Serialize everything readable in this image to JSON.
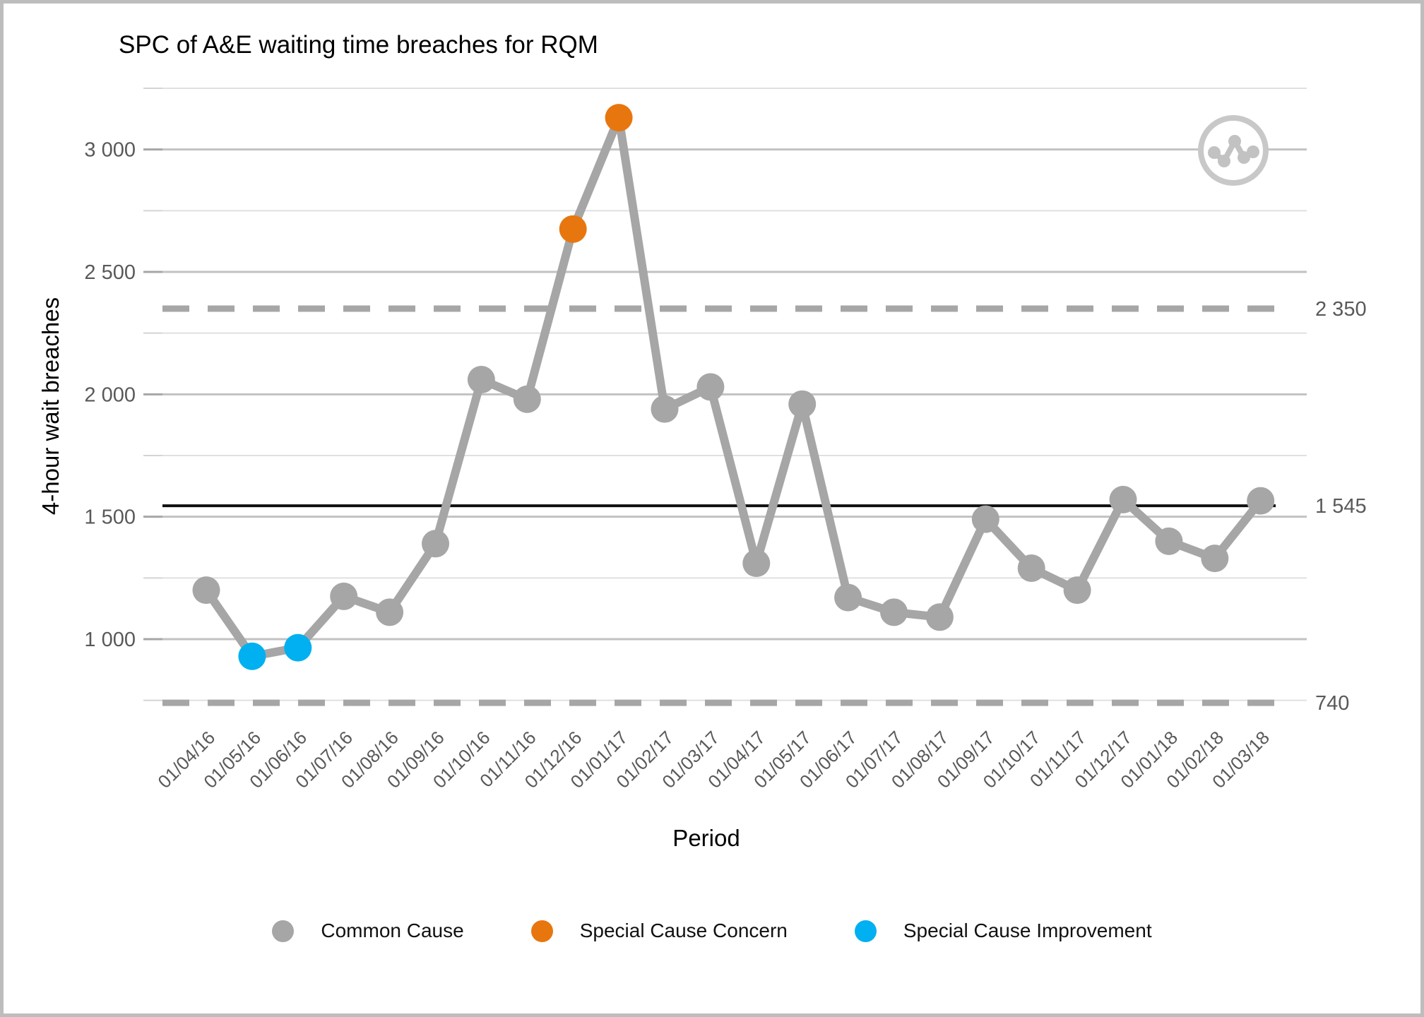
{
  "frame": {
    "border_color": "#bdbdbd",
    "background": "#ffffff"
  },
  "header": {
    "title": "SPC of A&E waiting time breaches for RQM"
  },
  "axes": {
    "y_title": "4-hour wait breaches",
    "x_title": "Period"
  },
  "icon": {
    "name": "spc-line-chart-icon",
    "ring_color": "#c8c8c8",
    "glyph_color": "#c2c2c2"
  },
  "legend": {
    "items": [
      {
        "type": "common",
        "label": "Common Cause",
        "color": "#a6a6a6"
      },
      {
        "type": "concern",
        "label": "Special Cause Concern",
        "color": "#e8760e"
      },
      {
        "type": "improvement",
        "label": "Special Cause Improvement",
        "color": "#00b0f0"
      }
    ]
  },
  "chart_data": {
    "type": "line",
    "title": "SPC of A&E waiting time breaches for RQM",
    "xlabel": "Period",
    "ylabel": "4-hour wait breaches",
    "categories": [
      "01/04/16",
      "01/05/16",
      "01/06/16",
      "01/07/16",
      "01/08/16",
      "01/09/16",
      "01/10/16",
      "01/11/16",
      "01/12/16",
      "01/01/17",
      "01/02/17",
      "01/03/17",
      "01/04/17",
      "01/05/17",
      "01/06/17",
      "01/07/17",
      "01/08/17",
      "01/09/17",
      "01/10/17",
      "01/11/17",
      "01/12/17",
      "01/01/18",
      "01/02/18",
      "01/03/18"
    ],
    "series": [
      {
        "name": "4-hour wait breaches",
        "values": [
          1200,
          930,
          965,
          1175,
          1110,
          1390,
          2060,
          1980,
          2675,
          3130,
          1940,
          2030,
          1310,
          1960,
          1170,
          1110,
          1090,
          1490,
          1290,
          1200,
          1570,
          1400,
          1330,
          1565
        ],
        "point_types": [
          "common",
          "improvement",
          "improvement",
          "common",
          "common",
          "common",
          "common",
          "common",
          "concern",
          "concern",
          "common",
          "common",
          "common",
          "common",
          "common",
          "common",
          "common",
          "common",
          "common",
          "common",
          "common",
          "common",
          "common",
          "common"
        ]
      }
    ],
    "ylim": [
      620,
      3360
    ],
    "grid": {
      "show": true,
      "minor_step": 250,
      "major_step": 500,
      "min": 750,
      "max": 3250
    },
    "yticks": [
      {
        "value": 1000,
        "label": "1 000"
      },
      {
        "value": 1500,
        "label": "1 500"
      },
      {
        "value": 2000,
        "label": "2 000"
      },
      {
        "value": 2500,
        "label": "2 500"
      },
      {
        "value": 3000,
        "label": "3 000"
      }
    ],
    "reference_lines": [
      {
        "name": "upper-process-limit",
        "value": 2350,
        "label": "2 350",
        "style": "dashed",
        "color": "#a6a6a6"
      },
      {
        "name": "mean",
        "value": 1545,
        "label": "1 545",
        "style": "solid",
        "color": "#101010"
      },
      {
        "name": "lower-process-limit",
        "value": 740,
        "label": "740",
        "style": "dashed",
        "color": "#a6a6a6"
      }
    ],
    "point_colors": {
      "common": "#a6a6a6",
      "concern": "#e8760e",
      "improvement": "#00b0f0"
    },
    "line_color": "#a6a6a6",
    "gridline_major_color": "#c2c2c2",
    "gridline_minor_color": "#e0e0e0",
    "tick_label_color": "#595959",
    "legend_position": "bottom"
  }
}
